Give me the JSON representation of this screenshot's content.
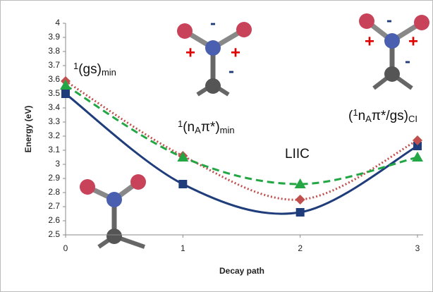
{
  "chart_data": {
    "type": "line",
    "y_label": "Energy (eV)",
    "x_label": "Decay path",
    "x": [
      0,
      1,
      2,
      3
    ],
    "xlim": [
      0,
      3
    ],
    "xticks": [
      0,
      1,
      2,
      3
    ],
    "ylim": [
      2.5,
      4
    ],
    "yticks": [
      2.5,
      2.6,
      2.7,
      2.8,
      2.9,
      3,
      3.1,
      3.2,
      3.3,
      3.4,
      3.5,
      3.6,
      3.7,
      3.8,
      3.9,
      4
    ],
    "grid": false,
    "series": [
      {
        "color": "#1f3d7a",
        "dash": "solid",
        "marker": "square",
        "values": [
          3.5,
          2.86,
          2.66,
          3.13
        ]
      },
      {
        "color": "#c0504d",
        "dash": "dotted",
        "marker": "diamond",
        "values": [
          3.59,
          3.06,
          2.75,
          3.17
        ]
      },
      {
        "color": "#22a744",
        "dash": "dashed",
        "marker": "triangle",
        "values": [
          3.56,
          3.05,
          2.86,
          3.05
        ]
      }
    ],
    "annotations": [
      [
        {
          "text": "1",
          "style": "sup"
        },
        {
          "text": "(gs)",
          "style": "normal"
        },
        {
          "text": "min",
          "style": "sub"
        }
      ],
      [
        {
          "text": "1",
          "style": "sup"
        },
        {
          "text": "(n",
          "style": "normal"
        },
        {
          "text": "A",
          "style": "sub"
        },
        {
          "text": "π*)",
          "style": "normal"
        },
        {
          "text": "min",
          "style": "sub"
        }
      ],
      [
        {
          "text": "LIIC",
          "style": "normal"
        }
      ],
      [
        {
          "text": "(",
          "style": "normal"
        },
        {
          "text": "1",
          "style": "sup"
        },
        {
          "text": "n",
          "style": "normal"
        },
        {
          "text": "A",
          "style": "sub"
        },
        {
          "text": "π*/gs)",
          "style": "normal"
        },
        {
          "text": "CI",
          "style": "sub"
        }
      ]
    ],
    "charges": [
      [
        {
          "text": "-",
          "color": "#1f3d7a"
        },
        {
          "text": "+",
          "color": "#e00000"
        },
        {
          "text": "+",
          "color": "#e00000"
        },
        {
          "text": "-",
          "color": "#1f3d7a"
        }
      ],
      [
        {
          "text": "-",
          "color": "#1f3d7a"
        },
        {
          "text": "+",
          "color": "#e00000"
        },
        {
          "text": "+",
          "color": "#e00000"
        },
        {
          "text": "-",
          "color": "#1f3d7a"
        }
      ]
    ]
  }
}
